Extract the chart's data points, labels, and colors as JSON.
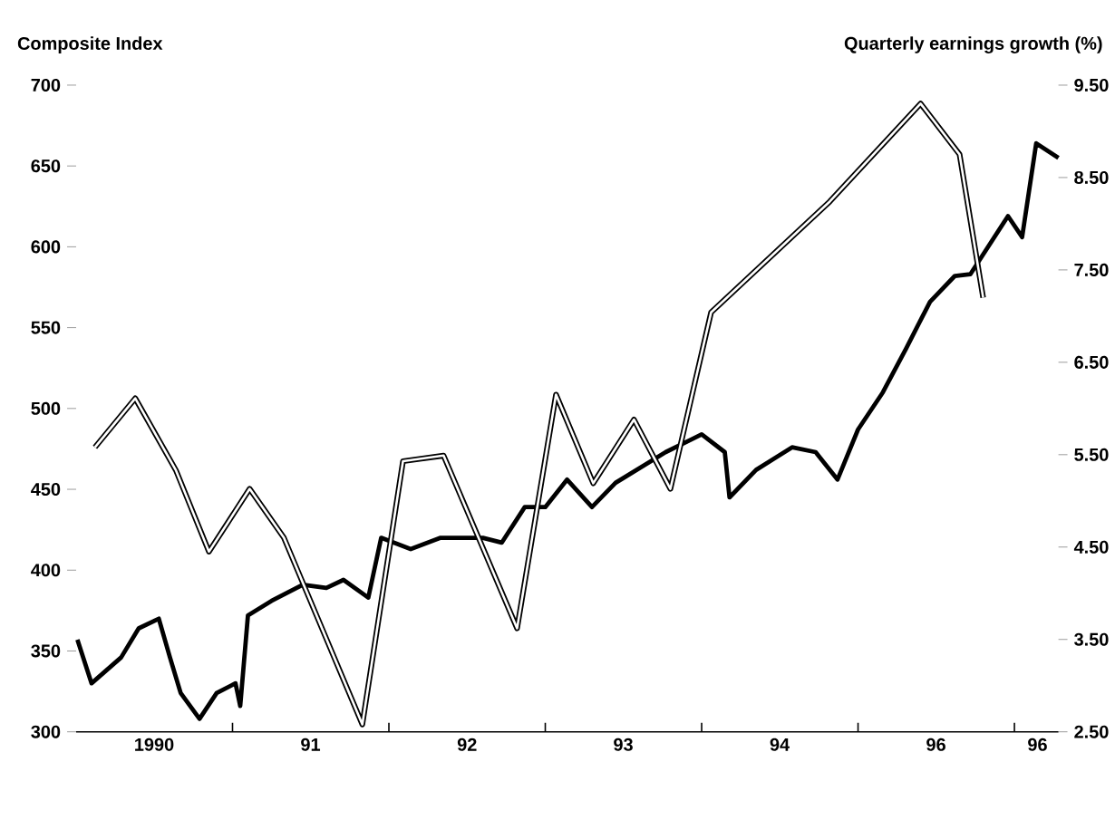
{
  "chart_data": {
    "type": "line",
    "ylabel": "Composite Index",
    "y2label": "Quarterly earnings growth (%)",
    "xlim": [
      "1990-01-01",
      "1996-04-13"
    ],
    "xticks": [
      {
        "value": "1990-07-02",
        "label": "1990"
      },
      {
        "value": "1991-01-01",
        "label": null
      },
      {
        "value": "1991-07-02",
        "label": "91"
      },
      {
        "value": "1992-01-01",
        "label": null
      },
      {
        "value": "1992-07-02",
        "label": "92"
      },
      {
        "value": "1993-01-01",
        "label": null
      },
      {
        "value": "1993-07-02",
        "label": "93"
      },
      {
        "value": "1994-01-01",
        "label": null
      },
      {
        "value": "1994-07-02",
        "label": "94"
      },
      {
        "value": "1995-01-01",
        "label": null
      },
      {
        "value": "1995-07-02",
        "label": "96"
      },
      {
        "value": "1996-01-01",
        "label": null
      },
      {
        "value": "1996-02-24",
        "label": "96"
      }
    ],
    "ylim": [
      300,
      700
    ],
    "yticks": [
      300,
      350,
      400,
      450,
      500,
      550,
      600,
      650,
      700
    ],
    "y2lim": [
      2.5,
      9.5
    ],
    "y2ticks": [
      {
        "value": 2.5,
        "label": "2.50"
      },
      {
        "value": 3.5,
        "label": "3.50"
      },
      {
        "value": 4.5,
        "label": "4.50"
      },
      {
        "value": 5.5,
        "label": "5.50"
      },
      {
        "value": 6.5,
        "label": "6.50"
      },
      {
        "value": 7.5,
        "label": "7.50"
      },
      {
        "value": 8.5,
        "label": "8.50"
      },
      {
        "value": 9.5,
        "label": "9.50"
      }
    ],
    "series": [
      {
        "color": "#000000",
        "x": [
          "1990-01-04",
          "1990-02-06",
          "1990-04-16",
          "1990-05-27",
          "1990-07-13",
          "1990-08-08",
          "1990-09-02",
          "1990-10-16",
          "1990-11-25",
          "1991-01-08",
          "1991-01-19",
          "1991-02-06",
          "1991-04-02",
          "1991-06-14",
          "1991-08-08",
          "1991-09-17",
          "1991-11-14",
          "1991-12-14",
          "1992-02-21",
          "1992-05-01",
          "1992-08-08",
          "1992-09-21",
          "1992-11-14",
          "1993-01-01",
          "1993-02-21",
          "1993-04-20",
          "1993-06-14",
          "1993-10-09",
          "1994-01-01",
          "1994-02-24",
          "1994-03-07",
          "1994-05-08",
          "1994-07-31",
          "1994-09-24",
          "1994-11-14",
          "1995-01-01",
          "1995-02-28",
          "1995-04-23",
          "1995-06-18",
          "1995-08-15",
          "1995-09-20",
          "1995-12-17",
          "1996-01-19",
          "1996-02-21",
          "1996-04-13"
        ],
        "values": [
          357,
          330,
          346,
          364,
          370,
          346,
          324,
          308,
          324,
          330,
          316,
          372,
          381,
          391,
          389,
          394,
          383,
          420,
          413,
          420,
          420,
          417,
          439,
          439,
          456,
          439,
          454,
          473,
          484,
          473,
          445,
          462,
          476,
          473,
          456,
          487,
          510,
          537,
          566,
          582,
          583,
          619,
          606,
          664,
          655
        ]
      },
      {
        "color": "#000000",
        "axis": "y2",
        "x": [
          "1990-02-14",
          "1990-05-19",
          "1990-08-22",
          "1990-11-07",
          "1991-02-10",
          "1991-05-01",
          "1991-10-31",
          "1992-02-03",
          "1992-05-08",
          "1992-10-27",
          "1993-01-26",
          "1993-04-23",
          "1993-07-27",
          "1993-10-20",
          "1994-01-23",
          "1994-10-27",
          "1995-05-27",
          "1995-08-26",
          "1995-10-20"
        ],
        "values": [
          5.58,
          6.11,
          5.33,
          4.45,
          5.13,
          4.6,
          2.58,
          5.43,
          5.49,
          3.62,
          6.15,
          5.19,
          5.88,
          5.13,
          7.04,
          8.24,
          9.3,
          8.75,
          7.2
        ]
      }
    ]
  }
}
